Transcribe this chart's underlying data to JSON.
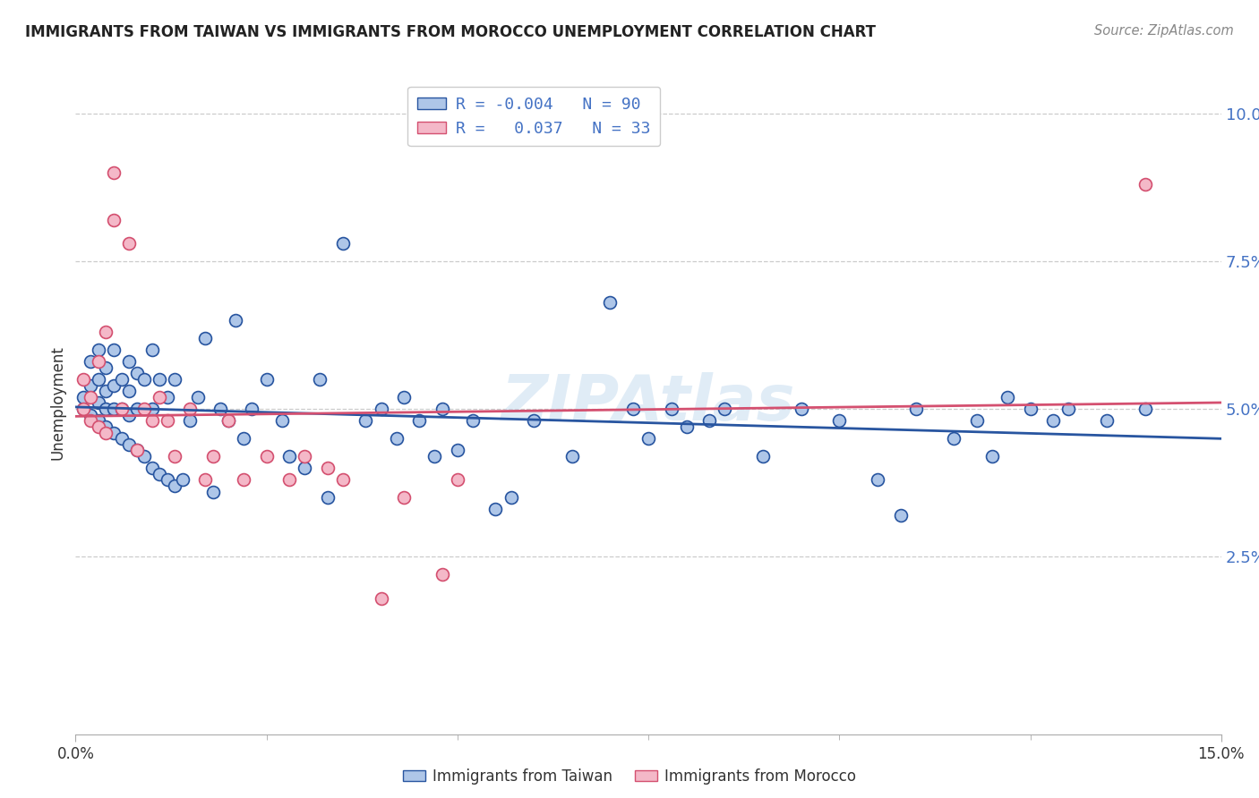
{
  "title": "IMMIGRANTS FROM TAIWAN VS IMMIGRANTS FROM MOROCCO UNEMPLOYMENT CORRELATION CHART",
  "source": "Source: ZipAtlas.com",
  "ylabel": "Unemployment",
  "xlim": [
    0.0,
    0.15
  ],
  "ylim": [
    -0.005,
    0.107
  ],
  "taiwan_R": -0.004,
  "taiwan_N": 90,
  "morocco_R": 0.037,
  "morocco_N": 33,
  "taiwan_color": "#aec6e8",
  "morocco_color": "#f4b8c8",
  "taiwan_line_color": "#2855a0",
  "morocco_line_color": "#d45070",
  "taiwan_line_y_intercept": 0.05,
  "taiwan_line_slope": 0.0,
  "morocco_line_y_at_0": 0.047,
  "morocco_line_y_at_015": 0.058,
  "watermark": "ZIPAtlas",
  "marker_size": 100,
  "marker_edge_width": 1.2,
  "taiwan_x": [
    0.001,
    0.001,
    0.002,
    0.002,
    0.002,
    0.003,
    0.003,
    0.003,
    0.003,
    0.004,
    0.004,
    0.004,
    0.004,
    0.005,
    0.005,
    0.005,
    0.005,
    0.006,
    0.006,
    0.006,
    0.007,
    0.007,
    0.007,
    0.007,
    0.008,
    0.008,
    0.008,
    0.009,
    0.009,
    0.01,
    0.01,
    0.01,
    0.011,
    0.011,
    0.012,
    0.012,
    0.013,
    0.013,
    0.014,
    0.015,
    0.016,
    0.017,
    0.018,
    0.019,
    0.02,
    0.021,
    0.022,
    0.023,
    0.025,
    0.027,
    0.028,
    0.03,
    0.032,
    0.033,
    0.035,
    0.038,
    0.04,
    0.042,
    0.043,
    0.045,
    0.047,
    0.048,
    0.05,
    0.052,
    0.055,
    0.057,
    0.06,
    0.065,
    0.07,
    0.073,
    0.075,
    0.078,
    0.08,
    0.083,
    0.085,
    0.09,
    0.095,
    0.1,
    0.105,
    0.108,
    0.11,
    0.115,
    0.118,
    0.12,
    0.122,
    0.125,
    0.128,
    0.13,
    0.135,
    0.14
  ],
  "taiwan_y": [
    0.05,
    0.052,
    0.049,
    0.054,
    0.058,
    0.048,
    0.051,
    0.055,
    0.06,
    0.047,
    0.05,
    0.053,
    0.057,
    0.046,
    0.05,
    0.054,
    0.06,
    0.045,
    0.05,
    0.055,
    0.044,
    0.049,
    0.053,
    0.058,
    0.043,
    0.05,
    0.056,
    0.042,
    0.055,
    0.04,
    0.05,
    0.06,
    0.039,
    0.055,
    0.038,
    0.052,
    0.037,
    0.055,
    0.038,
    0.048,
    0.052,
    0.062,
    0.036,
    0.05,
    0.048,
    0.065,
    0.045,
    0.05,
    0.055,
    0.048,
    0.042,
    0.04,
    0.055,
    0.035,
    0.078,
    0.048,
    0.05,
    0.045,
    0.052,
    0.048,
    0.042,
    0.05,
    0.043,
    0.048,
    0.033,
    0.035,
    0.048,
    0.042,
    0.068,
    0.05,
    0.045,
    0.05,
    0.047,
    0.048,
    0.05,
    0.042,
    0.05,
    0.048,
    0.038,
    0.032,
    0.05,
    0.045,
    0.048,
    0.042,
    0.052,
    0.05,
    0.048,
    0.05,
    0.048,
    0.05
  ],
  "morocco_x": [
    0.001,
    0.001,
    0.002,
    0.002,
    0.003,
    0.003,
    0.004,
    0.004,
    0.005,
    0.005,
    0.006,
    0.007,
    0.008,
    0.009,
    0.01,
    0.011,
    0.012,
    0.013,
    0.015,
    0.017,
    0.018,
    0.02,
    0.022,
    0.025,
    0.028,
    0.03,
    0.033,
    0.035,
    0.04,
    0.043,
    0.048,
    0.05,
    0.14
  ],
  "morocco_y": [
    0.05,
    0.055,
    0.048,
    0.052,
    0.047,
    0.058,
    0.046,
    0.063,
    0.082,
    0.09,
    0.05,
    0.078,
    0.043,
    0.05,
    0.048,
    0.052,
    0.048,
    0.042,
    0.05,
    0.038,
    0.042,
    0.048,
    0.038,
    0.042,
    0.038,
    0.042,
    0.04,
    0.038,
    0.018,
    0.035,
    0.022,
    0.038,
    0.088
  ]
}
